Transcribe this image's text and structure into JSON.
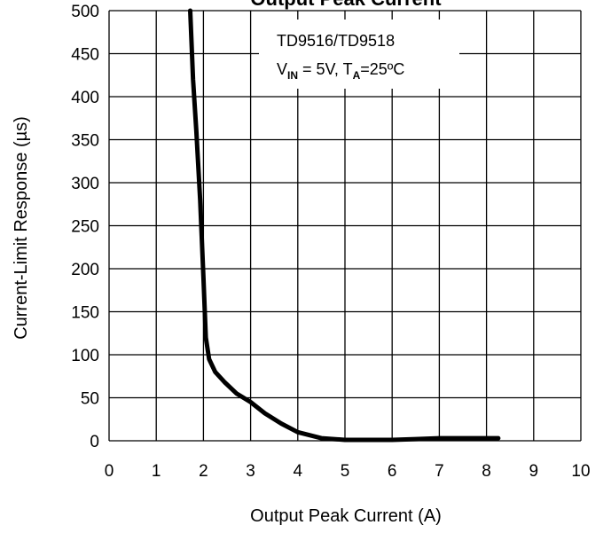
{
  "chart_data": {
    "type": "line",
    "title": "Output Peak Current",
    "xlabel": "Output Peak Current (A)",
    "ylabel": "Current-Limit Response (µs)",
    "xlim": [
      0,
      10
    ],
    "ylim": [
      0,
      500
    ],
    "x_ticks": [
      0,
      1,
      2,
      3,
      4,
      5,
      6,
      7,
      8,
      9,
      10
    ],
    "y_ticks": [
      0,
      50,
      100,
      150,
      200,
      250,
      300,
      350,
      400,
      450,
      500
    ],
    "grid": true,
    "annotation": {
      "line1": "TD9516/TD9518",
      "line2": {
        "v": "V",
        "v_sub": "IN",
        "v_text": " = 5V, T",
        "t_sub": "A",
        "t_text": "=25ºC"
      }
    },
    "series": [
      {
        "color": "#000000",
        "x": [
          1.72,
          1.78,
          1.85,
          1.93,
          2.0,
          2.05,
          2.12,
          2.25,
          2.45,
          2.7,
          3.0,
          3.3,
          3.65,
          4.0,
          4.5,
          5.0,
          5.5,
          6.0,
          6.5,
          7.0,
          7.5,
          8.0,
          8.25
        ],
        "y": [
          500,
          420,
          360,
          280,
          190,
          120,
          95,
          80,
          68,
          55,
          45,
          32,
          20,
          10,
          3,
          1,
          1,
          1,
          2,
          3,
          3,
          3,
          3
        ]
      }
    ]
  }
}
